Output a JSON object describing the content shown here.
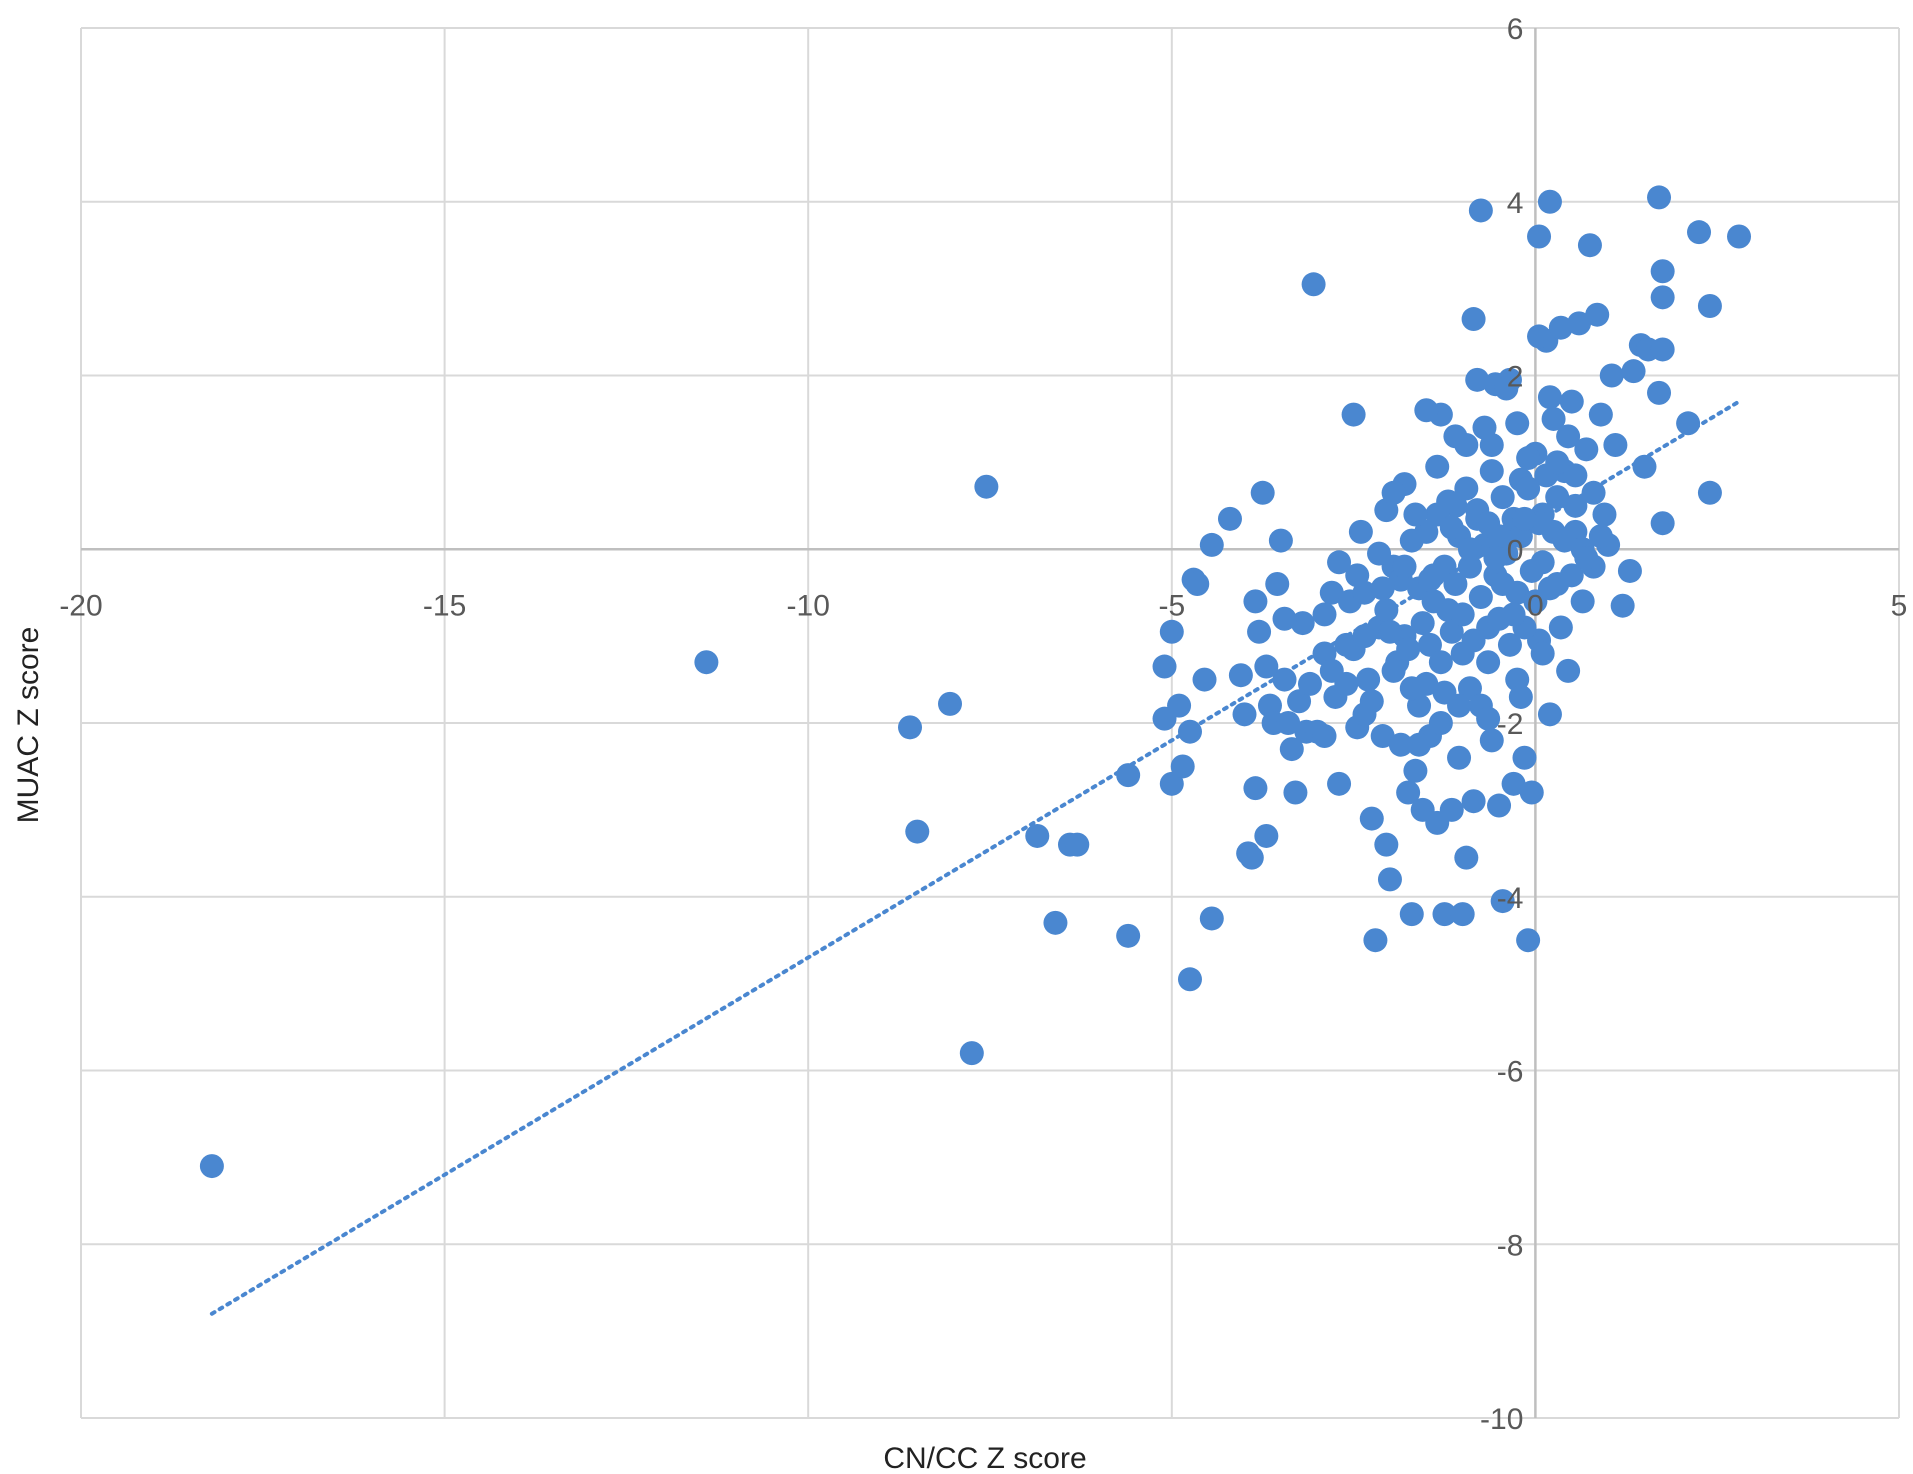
{
  "chart_data": {
    "type": "scatter",
    "xlabel": "CN/CC Z score",
    "ylabel": "MUAC Z score",
    "xlim": [
      -20,
      5
    ],
    "ylim": [
      -10,
      6
    ],
    "xticks": [
      "-20",
      "-15",
      "-10",
      "-5",
      "0",
      "5"
    ],
    "yticks": [
      "-10",
      "-8",
      "-6",
      "-4",
      "-2",
      "0",
      "2",
      "4",
      "6"
    ],
    "grid": true,
    "legend": "none",
    "point_color": "#4a87d0",
    "grid_color": "#d9d9d9",
    "axis_color": "#bfbfbf",
    "trendline": {
      "style": "dotted",
      "color": "#4a87d0",
      "x": [
        -18.2,
        2.8
      ],
      "y": [
        -8.8,
        1.7
      ]
    },
    "series": [
      {
        "points": [
          [
            -18.2,
            -7.1
          ],
          [
            -11.4,
            -1.3
          ],
          [
            -8.6,
            -2.05
          ],
          [
            -8.5,
            -3.25
          ],
          [
            -8.05,
            -1.78
          ],
          [
            -7.75,
            -5.8
          ],
          [
            -7.55,
            0.72
          ],
          [
            -6.85,
            -3.3
          ],
          [
            -6.6,
            -4.3
          ],
          [
            -6.4,
            -3.4
          ],
          [
            -6.3,
            -3.4
          ],
          [
            -5.6,
            -4.45
          ],
          [
            -5.6,
            -2.6
          ],
          [
            -5.1,
            -1.95
          ],
          [
            -5.1,
            -1.35
          ],
          [
            -5.0,
            -0.95
          ],
          [
            -5.0,
            -2.7
          ],
          [
            -4.9,
            -1.8
          ],
          [
            -4.85,
            -2.5
          ],
          [
            -4.75,
            -4.95
          ],
          [
            -4.75,
            -2.1
          ],
          [
            -4.7,
            -0.35
          ],
          [
            -4.65,
            -0.4
          ],
          [
            -4.55,
            -1.5
          ],
          [
            -4.45,
            -4.25
          ],
          [
            -4.2,
            0.35
          ],
          [
            -4.05,
            -1.45
          ],
          [
            -4.0,
            -1.9
          ],
          [
            -3.95,
            -3.5
          ],
          [
            -3.9,
            -3.55
          ],
          [
            -3.85,
            -0.6
          ],
          [
            -3.85,
            -2.75
          ],
          [
            -3.75,
            0.65
          ],
          [
            -3.7,
            -3.3
          ],
          [
            -3.65,
            -1.8
          ],
          [
            -3.6,
            -2.0
          ],
          [
            -3.55,
            -0.4
          ],
          [
            -3.5,
            0.1
          ],
          [
            -3.45,
            -1.5
          ],
          [
            -3.4,
            -2.0
          ],
          [
            -3.3,
            -2.8
          ],
          [
            -3.25,
            -1.75
          ],
          [
            -3.2,
            -0.85
          ],
          [
            -3.15,
            -2.1
          ],
          [
            -3.0,
            -2.1
          ],
          [
            -2.9,
            -2.15
          ],
          [
            -2.8,
            -0.5
          ],
          [
            -2.75,
            -1.7
          ],
          [
            -2.7,
            -2.7
          ],
          [
            -2.6,
            -1.1
          ],
          [
            -2.5,
            -1.15
          ],
          [
            -2.45,
            -2.05
          ],
          [
            -2.4,
            0.2
          ],
          [
            -2.35,
            -1.0
          ],
          [
            -2.3,
            -1.5
          ],
          [
            -2.25,
            -3.1
          ],
          [
            -2.2,
            -4.5
          ],
          [
            -2.15,
            -0.9
          ],
          [
            -2.1,
            -2.15
          ],
          [
            -2.05,
            -3.4
          ],
          [
            -2.05,
            0.45
          ],
          [
            -2.0,
            -3.8
          ],
          [
            -1.95,
            -0.2
          ],
          [
            -1.9,
            -1.3
          ],
          [
            -1.85,
            -2.25
          ],
          [
            -1.8,
            0.75
          ],
          [
            -1.75,
            -2.8
          ],
          [
            -1.7,
            -4.2
          ],
          [
            -1.65,
            -2.55
          ],
          [
            -1.6,
            -1.8
          ],
          [
            -1.55,
            -3.0
          ],
          [
            -1.5,
            -1.55
          ],
          [
            -1.45,
            -2.15
          ],
          [
            -1.4,
            -0.3
          ],
          [
            -1.35,
            -3.15
          ],
          [
            -1.3,
            -2.0
          ],
          [
            -1.3,
            1.55
          ],
          [
            -1.25,
            -4.2
          ],
          [
            -1.2,
            -0.7
          ],
          [
            -1.15,
            -3.0
          ],
          [
            -1.1,
            0.5
          ],
          [
            -1.05,
            -2.4
          ],
          [
            -1.0,
            -1.2
          ],
          [
            -1.0,
            -4.2
          ],
          [
            -0.95,
            -3.55
          ],
          [
            -0.9,
            -1.6
          ],
          [
            -0.85,
            -2.9
          ],
          [
            -0.8,
            0.35
          ],
          [
            -0.75,
            -1.8
          ],
          [
            -0.7,
            1.4
          ],
          [
            -0.65,
            -0.9
          ],
          [
            -0.6,
            -2.2
          ],
          [
            -0.55,
            1.9
          ],
          [
            -0.5,
            -2.95
          ],
          [
            -0.45,
            -4.05
          ],
          [
            -0.4,
            0.15
          ],
          [
            -0.35,
            1.95
          ],
          [
            -0.3,
            -2.7
          ],
          [
            -0.25,
            -1.5
          ],
          [
            -0.2,
            0.8
          ],
          [
            -0.15,
            -2.4
          ],
          [
            -0.1,
            -4.5
          ],
          [
            -0.05,
            -2.8
          ],
          [
            0.0,
            1.1
          ],
          [
            0.05,
            -1.05
          ],
          [
            0.1,
            0.4
          ],
          [
            0.15,
            2.4
          ],
          [
            0.2,
            -1.9
          ],
          [
            0.25,
            1.5
          ],
          [
            0.3,
            -0.4
          ],
          [
            0.35,
            2.55
          ],
          [
            0.4,
            0.9
          ],
          [
            0.45,
            -1.4
          ],
          [
            0.5,
            1.7
          ],
          [
            0.55,
            0.2
          ],
          [
            0.6,
            2.6
          ],
          [
            0.65,
            -0.6
          ],
          [
            0.7,
            1.15
          ],
          [
            0.75,
            3.5
          ],
          [
            0.8,
            0.65
          ],
          [
            0.85,
            2.7
          ],
          [
            0.9,
            1.55
          ],
          [
            1.0,
            0.05
          ],
          [
            1.05,
            2.0
          ],
          [
            1.1,
            1.2
          ],
          [
            1.2,
            -0.65
          ],
          [
            1.3,
            -0.25
          ],
          [
            1.35,
            2.05
          ],
          [
            1.45,
            2.35
          ],
          [
            1.5,
            0.95
          ],
          [
            1.55,
            2.3
          ],
          [
            1.7,
            1.8
          ],
          [
            1.75,
            2.3
          ],
          [
            1.75,
            3.2
          ],
          [
            1.75,
            0.3
          ],
          [
            1.75,
            2.9
          ],
          [
            1.7,
            4.05
          ],
          [
            2.1,
            1.45
          ],
          [
            2.25,
            3.65
          ],
          [
            2.4,
            0.65
          ],
          [
            2.4,
            2.8
          ],
          [
            2.8,
            3.6
          ],
          [
            -4.45,
            0.05
          ],
          [
            -3.7,
            -1.35
          ],
          [
            -3.1,
            -1.55
          ],
          [
            -2.9,
            -1.2
          ],
          [
            -2.7,
            -0.15
          ],
          [
            -2.55,
            -0.6
          ],
          [
            -2.35,
            -0.5
          ],
          [
            -2.25,
            -1.75
          ],
          [
            -2.15,
            -0.05
          ],
          [
            -2.05,
            -0.7
          ],
          [
            -1.95,
            -1.4
          ],
          [
            -1.85,
            -0.35
          ],
          [
            -1.8,
            -1.0
          ],
          [
            -1.7,
            0.1
          ],
          [
            -1.7,
            -1.6
          ],
          [
            -1.6,
            -0.45
          ],
          [
            -1.55,
            -0.85
          ],
          [
            -1.5,
            0.2
          ],
          [
            -1.45,
            -1.1
          ],
          [
            -1.4,
            -0.6
          ],
          [
            -1.35,
            0.4
          ],
          [
            -1.3,
            -1.3
          ],
          [
            -1.25,
            -0.2
          ],
          [
            -1.2,
            0.55
          ],
          [
            -1.15,
            -0.95
          ],
          [
            -1.1,
            -0.4
          ],
          [
            -1.05,
            0.15
          ],
          [
            -1.0,
            -0.75
          ],
          [
            -0.95,
            0.7
          ],
          [
            -0.9,
            -0.2
          ],
          [
            -0.85,
            -1.05
          ],
          [
            -0.8,
            0.45
          ],
          [
            -0.75,
            -0.55
          ],
          [
            -0.7,
            0.05
          ],
          [
            -0.65,
            -1.3
          ],
          [
            -0.6,
            0.9
          ],
          [
            -0.55,
            -0.3
          ],
          [
            -0.5,
            -0.8
          ],
          [
            -0.45,
            0.6
          ],
          [
            -0.4,
            -0.05
          ],
          [
            -0.35,
            -1.1
          ],
          [
            -0.3,
            0.35
          ],
          [
            -0.25,
            -0.5
          ],
          [
            -0.2,
            0.15
          ],
          [
            -0.15,
            -0.9
          ],
          [
            -0.1,
            0.7
          ],
          [
            -0.05,
            -0.25
          ],
          [
            0.0,
            -0.6
          ],
          [
            0.05,
            0.3
          ],
          [
            0.1,
            -0.15
          ],
          [
            0.15,
            0.85
          ],
          [
            0.2,
            -0.45
          ],
          [
            0.25,
            0.2
          ],
          [
            0.3,
            0.6
          ],
          [
            0.4,
            0.1
          ],
          [
            0.5,
            -0.3
          ],
          [
            0.55,
            0.5
          ],
          [
            0.65,
            0.0
          ],
          [
            0.8,
            -0.2
          ],
          [
            0.9,
            0.15
          ],
          [
            -2.5,
            1.55
          ],
          [
            -3.05,
            3.05
          ],
          [
            -1.5,
            1.6
          ],
          [
            -1.95,
            0.65
          ],
          [
            -0.6,
            1.2
          ],
          [
            -0.4,
            1.85
          ],
          [
            -0.8,
            1.95
          ],
          [
            -0.25,
            1.45
          ],
          [
            -0.1,
            1.05
          ],
          [
            0.2,
            1.75
          ],
          [
            0.45,
            1.3
          ],
          [
            0.05,
            2.45
          ],
          [
            -0.75,
            3.9
          ],
          [
            0.2,
            4.0
          ],
          [
            0.05,
            3.6
          ],
          [
            -0.85,
            2.65
          ],
          [
            -1.1,
            1.3
          ],
          [
            -0.5,
            0.15
          ],
          [
            -0.3,
            -0.75
          ],
          [
            -1.25,
            -1.65
          ],
          [
            -1.6,
            -2.25
          ],
          [
            -2.35,
            -1.9
          ],
          [
            -2.8,
            -1.4
          ],
          [
            -3.35,
            -2.3
          ],
          [
            -0.2,
            -1.7
          ],
          [
            0.1,
            -1.2
          ],
          [
            -0.65,
            -1.95
          ],
          [
            -1.05,
            -1.8
          ],
          [
            -1.75,
            -1.15
          ],
          [
            -2.0,
            -0.95
          ],
          [
            -1.65,
            0.4
          ],
          [
            -1.35,
            0.95
          ],
          [
            -0.95,
            1.2
          ],
          [
            -0.65,
            0.3
          ],
          [
            -0.45,
            -0.4
          ],
          [
            0.35,
            -0.9
          ],
          [
            0.7,
            -0.1
          ],
          [
            0.95,
            0.4
          ],
          [
            0.55,
            0.85
          ],
          [
            0.3,
            1.0
          ],
          [
            -0.15,
            0.35
          ],
          [
            -0.55,
            -0.1
          ],
          [
            -0.9,
            0.0
          ],
          [
            -1.15,
            0.25
          ],
          [
            -1.45,
            -0.35
          ],
          [
            -1.8,
            -0.2
          ],
          [
            -2.1,
            -0.45
          ],
          [
            -2.45,
            -0.3
          ],
          [
            -2.6,
            -1.55
          ],
          [
            -2.9,
            -0.75
          ],
          [
            -3.45,
            -0.8
          ],
          [
            -3.8,
            -0.95
          ]
        ]
      }
    ]
  }
}
